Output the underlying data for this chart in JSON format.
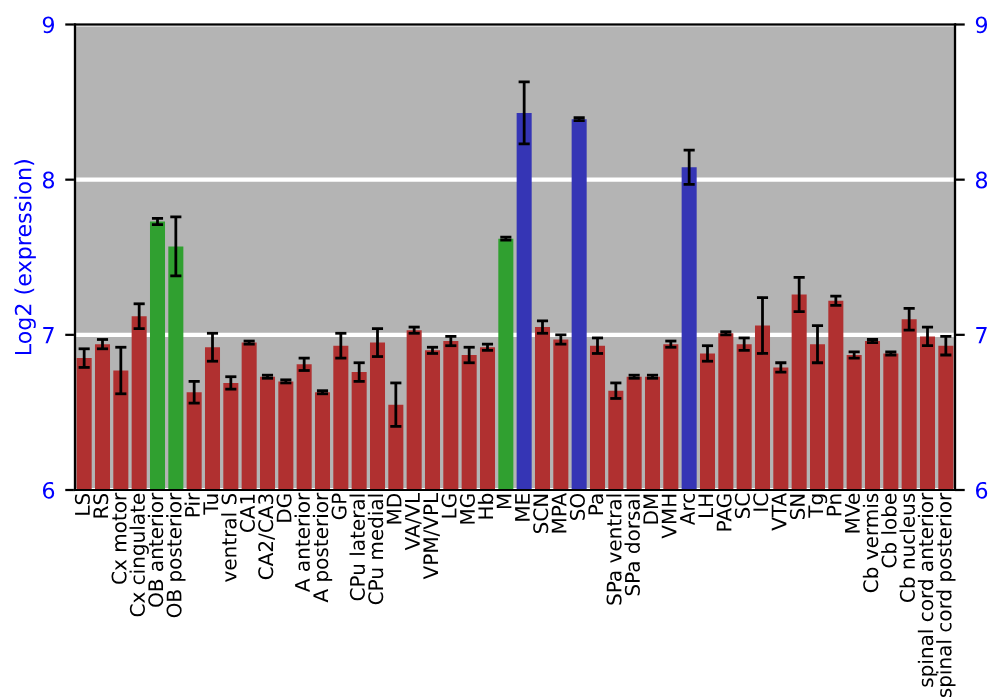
{
  "chart_data": {
    "type": "bar",
    "ylabel": "Log2 (expression)",
    "categories": [
      "LS",
      "RS",
      "Cx motor",
      "Cx cingulate",
      "OB anterior",
      "OB posterior",
      "Pir",
      "Tu",
      "ventral S",
      "CA1",
      "CA2/CA3",
      "DG",
      "A anterior",
      "A posterior",
      "GP",
      "CPu lateral",
      "CPu medial",
      "MD",
      "VA/VL",
      "VPM/VPL",
      "LG",
      "MG",
      "Hb",
      "M",
      "ME",
      "SCN",
      "MPA",
      "SO",
      "Pa",
      "SPa ventral",
      "SPa dorsal",
      "DM",
      "VMH",
      "Arc",
      "LH",
      "PAG",
      "SC",
      "IC",
      "VTA",
      "SN",
      "Tg",
      "Pn",
      "MVe",
      "Cb vermis",
      "Cb lobe",
      "Cb nucleus",
      "spinal cord anterior",
      "spinal cord posterior"
    ],
    "values": [
      6.85,
      6.94,
      6.77,
      7.12,
      7.73,
      7.57,
      6.63,
      6.92,
      6.69,
      6.95,
      6.73,
      6.7,
      6.81,
      6.63,
      6.93,
      6.76,
      6.95,
      6.55,
      7.03,
      6.9,
      6.96,
      6.87,
      6.92,
      7.62,
      8.43,
      7.05,
      6.97,
      8.39,
      6.93,
      6.64,
      6.73,
      6.73,
      6.94,
      8.08,
      6.88,
      7.01,
      6.94,
      7.06,
      6.79,
      7.26,
      6.94,
      7.22,
      6.87,
      6.96,
      6.88,
      7.1,
      6.99,
      6.93
    ],
    "errors": [
      0.06,
      0.03,
      0.15,
      0.08,
      0.02,
      0.19,
      0.07,
      0.09,
      0.04,
      0.01,
      0.01,
      0.01,
      0.04,
      0.01,
      0.08,
      0.06,
      0.09,
      0.14,
      0.02,
      0.02,
      0.03,
      0.05,
      0.02,
      0.01,
      0.2,
      0.04,
      0.03,
      0.01,
      0.05,
      0.05,
      0.01,
      0.01,
      0.02,
      0.11,
      0.05,
      0.01,
      0.04,
      0.18,
      0.03,
      0.11,
      0.12,
      0.03,
      0.02,
      0.01,
      0.01,
      0.07,
      0.06,
      0.06
    ],
    "colors": [
      "#b03030",
      "#b03030",
      "#b03030",
      "#b03030",
      "#30a030",
      "#30a030",
      "#b03030",
      "#b03030",
      "#b03030",
      "#b03030",
      "#b03030",
      "#b03030",
      "#b03030",
      "#b03030",
      "#b03030",
      "#b03030",
      "#b03030",
      "#b03030",
      "#b03030",
      "#b03030",
      "#b03030",
      "#b03030",
      "#b03030",
      "#30a030",
      "#3535b5",
      "#b03030",
      "#b03030",
      "#3535b5",
      "#b03030",
      "#b03030",
      "#b03030",
      "#b03030",
      "#b03030",
      "#3535b5",
      "#b03030",
      "#b03030",
      "#b03030",
      "#b03030",
      "#b03030",
      "#b03030",
      "#b03030",
      "#b03030",
      "#b03030",
      "#b03030",
      "#b03030",
      "#b03030",
      "#b03030",
      "#b03030"
    ],
    "ylim": [
      6,
      9
    ],
    "yticks": [
      6,
      7,
      8,
      9
    ],
    "y2lim": [
      6,
      9
    ],
    "y2ticks": [
      6,
      7,
      8,
      9
    ],
    "grid": "y"
  }
}
